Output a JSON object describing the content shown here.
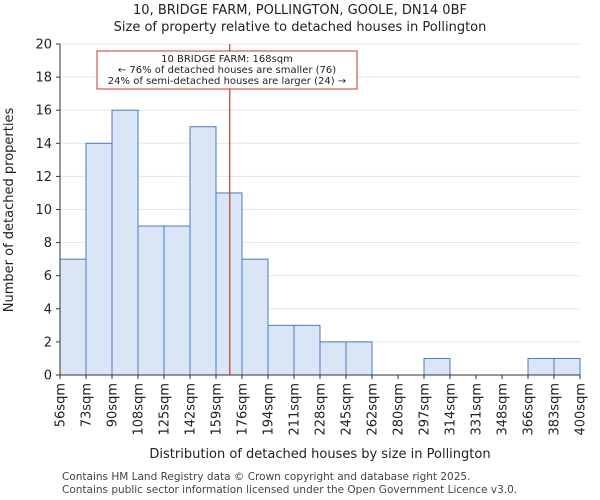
{
  "chart_data": {
    "type": "bar",
    "title": "10, BRIDGE FARM, POLLINGTON, GOOLE, DN14 0BF",
    "subtitle": "Size of property relative to detached houses in Pollington",
    "xlabel": "Distribution of detached houses by size in Pollington",
    "ylabel": "Number of detached properties",
    "ylim": [
      0,
      20
    ],
    "yticks": [
      0,
      2,
      4,
      6,
      8,
      10,
      12,
      14,
      16,
      18,
      20
    ],
    "bin_edges": [
      56,
      73,
      90,
      108,
      125,
      142,
      159,
      176,
      194,
      211,
      228,
      245,
      262,
      280,
      297,
      314,
      331,
      348,
      366,
      383,
      400
    ],
    "x_tick_labels": [
      "56sqm",
      "73sqm",
      "90sqm",
      "108sqm",
      "125sqm",
      "142sqm",
      "159sqm",
      "176sqm",
      "194sqm",
      "211sqm",
      "228sqm",
      "245sqm",
      "262sqm",
      "280sqm",
      "297sqm",
      "314sqm",
      "331sqm",
      "348sqm",
      "366sqm",
      "383sqm",
      "400sqm"
    ],
    "values": [
      7,
      14,
      16,
      9,
      9,
      15,
      11,
      7,
      3,
      3,
      2,
      2,
      0,
      0,
      1,
      0,
      0,
      0,
      1,
      1
    ],
    "marker_value": 168,
    "annotation": {
      "line1": "10 BRIDGE FARM: 168sqm",
      "line2": "← 76% of detached houses are smaller (76)",
      "line3": "24% of semi-detached houses are larger (24) →"
    },
    "colors": {
      "bar_fill": "#dae6f6",
      "bar_edge": "#4a79c6",
      "marker": "#c0392b"
    }
  },
  "footer": {
    "line1": "Contains HM Land Registry data © Crown copyright and database right 2025.",
    "line2": "Contains public sector information licensed under the Open Government Licence v3.0."
  }
}
